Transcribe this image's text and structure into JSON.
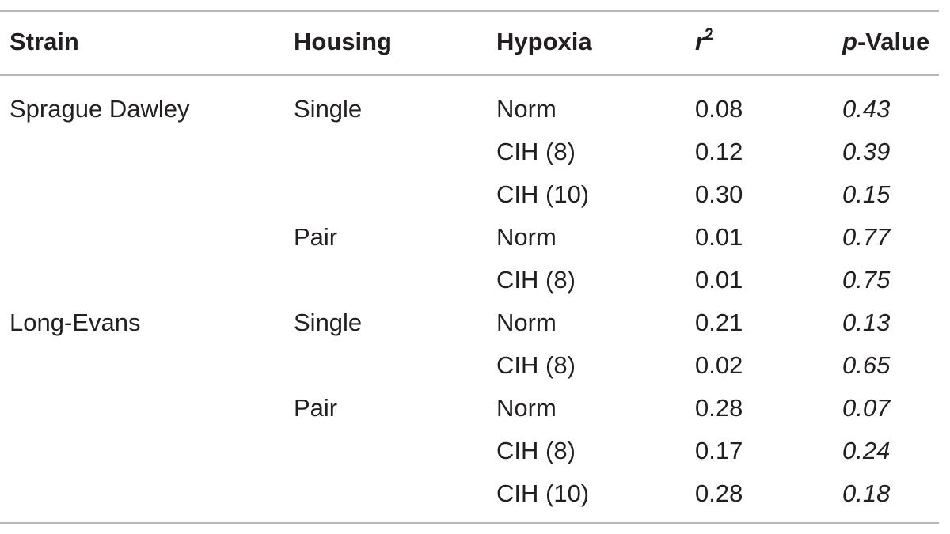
{
  "table": {
    "headers": {
      "strain": "Strain",
      "housing": "Housing",
      "hypoxia": "Hypoxia",
      "r2_base": "r",
      "r2_sup": "2",
      "p_italic": "p",
      "p_rest": "-Value"
    },
    "rows": [
      {
        "strain": "Sprague Dawley",
        "housing": "Single",
        "hypoxia": "Norm",
        "r2": "0.08",
        "p": "0.43"
      },
      {
        "strain": "",
        "housing": "",
        "hypoxia": "CIH (8)",
        "r2": "0.12",
        "p": "0.39"
      },
      {
        "strain": "",
        "housing": "",
        "hypoxia": "CIH (10)",
        "r2": "0.30",
        "p": "0.15"
      },
      {
        "strain": "",
        "housing": "Pair",
        "hypoxia": "Norm",
        "r2": "0.01",
        "p": "0.77"
      },
      {
        "strain": "",
        "housing": "",
        "hypoxia": "CIH (8)",
        "r2": "0.01",
        "p": "0.75"
      },
      {
        "strain": "Long-Evans",
        "housing": "Single",
        "hypoxia": "Norm",
        "r2": "0.21",
        "p": "0.13"
      },
      {
        "strain": "",
        "housing": "",
        "hypoxia": "CIH (8)",
        "r2": "0.02",
        "p": "0.65"
      },
      {
        "strain": "",
        "housing": "Pair",
        "hypoxia": "Norm",
        "r2": "0.28",
        "p": "0.07"
      },
      {
        "strain": "",
        "housing": "",
        "hypoxia": "CIH (8)",
        "r2": "0.17",
        "p": "0.24"
      },
      {
        "strain": "",
        "housing": "",
        "hypoxia": "CIH (10)",
        "r2": "0.28",
        "p": "0.18"
      }
    ]
  }
}
